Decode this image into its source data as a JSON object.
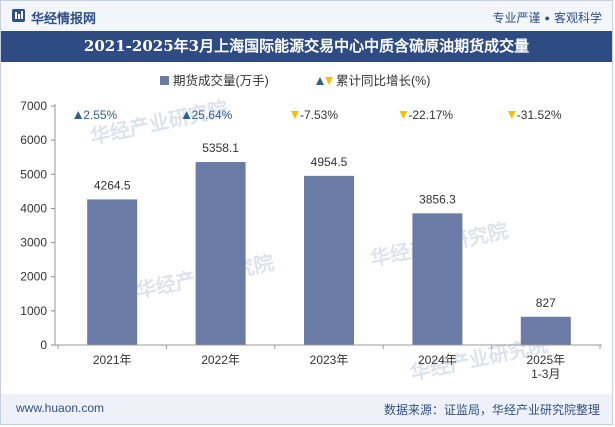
{
  "brand": {
    "name": "华经情报网",
    "tagline_left": "专业严谨",
    "tagline_right": "客观科学"
  },
  "watermark": "华经产业研究院",
  "footer": {
    "website": "www.huaon.com",
    "source": "数据来源：证监局，华经产业研究院整理"
  },
  "colors": {
    "bar": "#6a7ca6",
    "up": "#2e5f93",
    "down": "#f2c400",
    "title_bg": "#2e4b82"
  },
  "chart_data": {
    "type": "bar",
    "title": "2021-2025年3月上海国际能源交易中心中质含硫原油期货成交量",
    "categories": [
      "2021年",
      "2022年",
      "2023年",
      "2024年",
      "2025年\n1-3月"
    ],
    "series": [
      {
        "name": "期货成交量(万手)",
        "values": [
          4264.5,
          5358.1,
          4954.5,
          3856.3,
          827
        ],
        "labels": [
          "4264.5",
          "5358.1",
          "4954.5",
          "3856.3",
          "827"
        ]
      },
      {
        "name": "累计同比增长(%)",
        "values": [
          2.55,
          25.64,
          -7.53,
          -22.17,
          -31.52
        ],
        "labels": [
          "2.55%",
          "25.64%",
          "-7.53%",
          "-22.17%",
          "-31.52%"
        ]
      }
    ],
    "ylim": [
      0,
      7000
    ],
    "yticks": [
      0,
      1000,
      2000,
      3000,
      4000,
      5000,
      6000,
      7000
    ],
    "xlabel": "",
    "ylabel": ""
  }
}
